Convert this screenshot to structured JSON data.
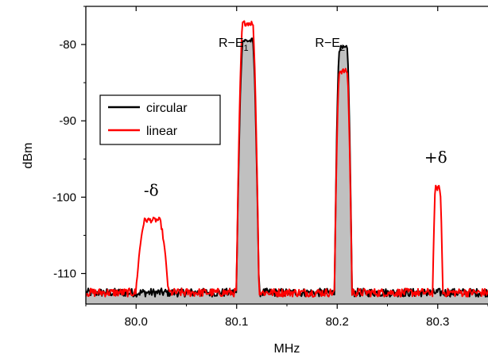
{
  "chart_data": {
    "type": "line",
    "title": "",
    "xlabel": "MHz",
    "ylabel": "dBm",
    "xlim": [
      79.95,
      80.35
    ],
    "ylim": [
      -114,
      -75
    ],
    "xticks": [
      80.0,
      80.1,
      80.2,
      80.3
    ],
    "xtick_labels": [
      "80.0",
      "80.1",
      "80.2",
      "80.3"
    ],
    "yticks": [
      -110,
      -100,
      -90,
      -80
    ],
    "ytick_labels": [
      "-110",
      "-100",
      "-90",
      "-80"
    ],
    "grid": false,
    "legend_position": "upper-left",
    "noise_floor_dbm": -112.5,
    "series": [
      {
        "name": "circular",
        "color": "#000000",
        "filled": true,
        "fill_color": "#c0c0c0",
        "peaks": [
          {
            "center": 80.111,
            "level": -79.5,
            "half_width": 0.009
          },
          {
            "center": 80.206,
            "level": -80.5,
            "half_width": 0.007
          }
        ]
      },
      {
        "name": "linear",
        "color": "#ff0000",
        "filled": false,
        "peaks": [
          {
            "center": 80.016,
            "level": -103.0,
            "half_width": 0.013
          },
          {
            "center": 80.111,
            "level": -77.2,
            "half_width": 0.009
          },
          {
            "center": 80.206,
            "level": -83.5,
            "half_width": 0.007
          },
          {
            "center": 80.3,
            "level": -98.8,
            "half_width": 0.004
          }
        ]
      }
    ],
    "annotations": [
      {
        "label": "R−E",
        "subscript": "1",
        "x": 80.082,
        "y": -80.3
      },
      {
        "label": "R−E",
        "subscript": "2",
        "x": 80.178,
        "y": -80.3
      },
      {
        "label": "-δ",
        "x": 80.015,
        "y": -99.8
      },
      {
        "label": "+δ",
        "x": 80.298,
        "y": -95.5
      }
    ]
  }
}
